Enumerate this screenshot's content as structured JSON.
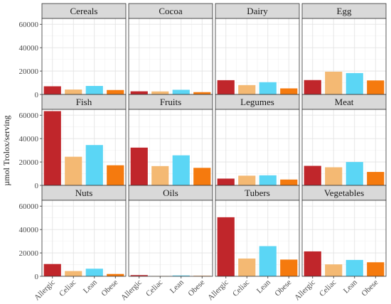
{
  "chart_data": {
    "type": "bar",
    "ylabel": "µmol Trolox/serving",
    "xlabel": "",
    "ylim": [
      0,
      65000
    ],
    "yticks": [
      0,
      20000,
      40000,
      60000
    ],
    "grid": true,
    "categories": [
      "Allergic",
      "Celiac",
      "Lean",
      "Obese"
    ],
    "colors": [
      "#c0262b",
      "#f4b973",
      "#5bd6f5",
      "#f57a0e"
    ],
    "panels": [
      {
        "name": "Cereals",
        "values": [
          7000,
          4200,
          7300,
          3800
        ]
      },
      {
        "name": "Cocoa",
        "values": [
          2700,
          2600,
          4000,
          2000
        ]
      },
      {
        "name": "Dairy",
        "values": [
          12200,
          8000,
          10500,
          5200
        ]
      },
      {
        "name": "Egg",
        "values": [
          12300,
          19500,
          18300,
          12000
        ]
      },
      {
        "name": "Fish",
        "values": [
          63500,
          24500,
          34500,
          17200
        ]
      },
      {
        "name": "Fruits",
        "values": [
          32300,
          16500,
          25700,
          15000
        ]
      },
      {
        "name": "Legumes",
        "values": [
          5800,
          8300,
          8600,
          5000
        ]
      },
      {
        "name": "Meat",
        "values": [
          16700,
          15500,
          20000,
          11500
        ]
      },
      {
        "name": "Nuts",
        "values": [
          10500,
          4500,
          6500,
          2000
        ]
      },
      {
        "name": "Oils",
        "values": [
          1000,
          200,
          700,
          400
        ]
      },
      {
        "name": "Tubers",
        "values": [
          50500,
          15200,
          25800,
          14300
        ]
      },
      {
        "name": "Vegetables",
        "values": [
          21300,
          10200,
          14000,
          12000
        ]
      }
    ]
  }
}
